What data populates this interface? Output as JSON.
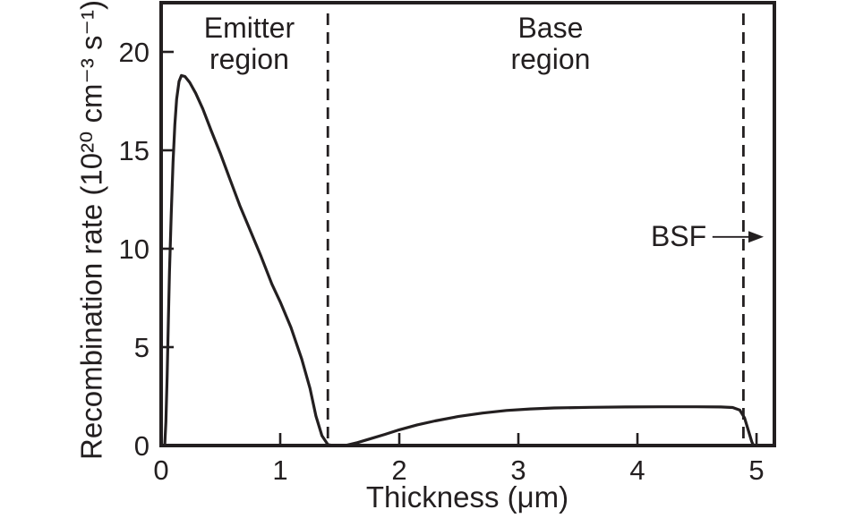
{
  "figure": {
    "background": "#ffffff",
    "ink_color": "#231f20"
  },
  "chart_data": {
    "type": "line",
    "title": "",
    "xlabel": "Thickness (μm)",
    "ylabel": "Recombination rate (10²⁰ cm⁻³ s⁻¹)",
    "xlim": [
      0,
      5.15
    ],
    "ylim": [
      0,
      22.5
    ],
    "x_ticks": [
      0,
      1,
      2,
      3,
      4,
      5
    ],
    "y_ticks": [
      0,
      5,
      10,
      15,
      20
    ],
    "grid": false,
    "legend": false,
    "series": [
      {
        "name": "recombination-rate-profile",
        "color": "#231f20",
        "points": [
          [
            0.03,
            0
          ],
          [
            0.04,
            1.2
          ],
          [
            0.05,
            3.5
          ],
          [
            0.06,
            6.2
          ],
          [
            0.07,
            8.8
          ],
          [
            0.085,
            11.8
          ],
          [
            0.1,
            14.4
          ],
          [
            0.115,
            16.3
          ],
          [
            0.13,
            17.6
          ],
          [
            0.15,
            18.5
          ],
          [
            0.17,
            18.8
          ],
          [
            0.2,
            18.75
          ],
          [
            0.24,
            18.45
          ],
          [
            0.29,
            17.9
          ],
          [
            0.35,
            17.1
          ],
          [
            0.42,
            16.0
          ],
          [
            0.5,
            14.8
          ],
          [
            0.58,
            13.5
          ],
          [
            0.66,
            12.2
          ],
          [
            0.75,
            10.9
          ],
          [
            0.84,
            9.6
          ],
          [
            0.93,
            8.2
          ],
          [
            1.0,
            7.3
          ],
          [
            1.09,
            6.0
          ],
          [
            1.18,
            4.4
          ],
          [
            1.25,
            2.9
          ],
          [
            1.3,
            1.5
          ],
          [
            1.35,
            0.5
          ],
          [
            1.4,
            0.05
          ],
          [
            1.44,
            0
          ],
          [
            1.56,
            0.02
          ],
          [
            1.65,
            0.15
          ],
          [
            1.75,
            0.33
          ],
          [
            1.88,
            0.57
          ],
          [
            2.0,
            0.8
          ],
          [
            2.15,
            1.05
          ],
          [
            2.3,
            1.25
          ],
          [
            2.5,
            1.48
          ],
          [
            2.7,
            1.65
          ],
          [
            2.9,
            1.78
          ],
          [
            3.1,
            1.86
          ],
          [
            3.3,
            1.91
          ],
          [
            3.6,
            1.94
          ],
          [
            3.9,
            1.96
          ],
          [
            4.2,
            1.97
          ],
          [
            4.5,
            1.97
          ],
          [
            4.7,
            1.96
          ],
          [
            4.8,
            1.93
          ],
          [
            4.86,
            1.8
          ],
          [
            4.9,
            1.4
          ],
          [
            4.93,
            0.8
          ],
          [
            4.96,
            0.2
          ],
          [
            4.975,
            0
          ]
        ]
      }
    ],
    "boundary_lines": [
      {
        "x": 1.4,
        "style": "dashed",
        "role": "emitter-base-boundary"
      },
      {
        "x": 4.89,
        "style": "dashed",
        "role": "bsf-boundary"
      }
    ],
    "annotations": {
      "emitter_region": {
        "lines": [
          "Emitter",
          "region"
        ],
        "x": 0.74
      },
      "base_region": {
        "lines": [
          "Base",
          "region"
        ],
        "x": 3.27
      },
      "bsf": {
        "text": "BSF",
        "y": 10.6,
        "text_right_x": 4.58,
        "arrow_from_x": 4.63,
        "arrow_tip_x": 5.06
      }
    }
  }
}
